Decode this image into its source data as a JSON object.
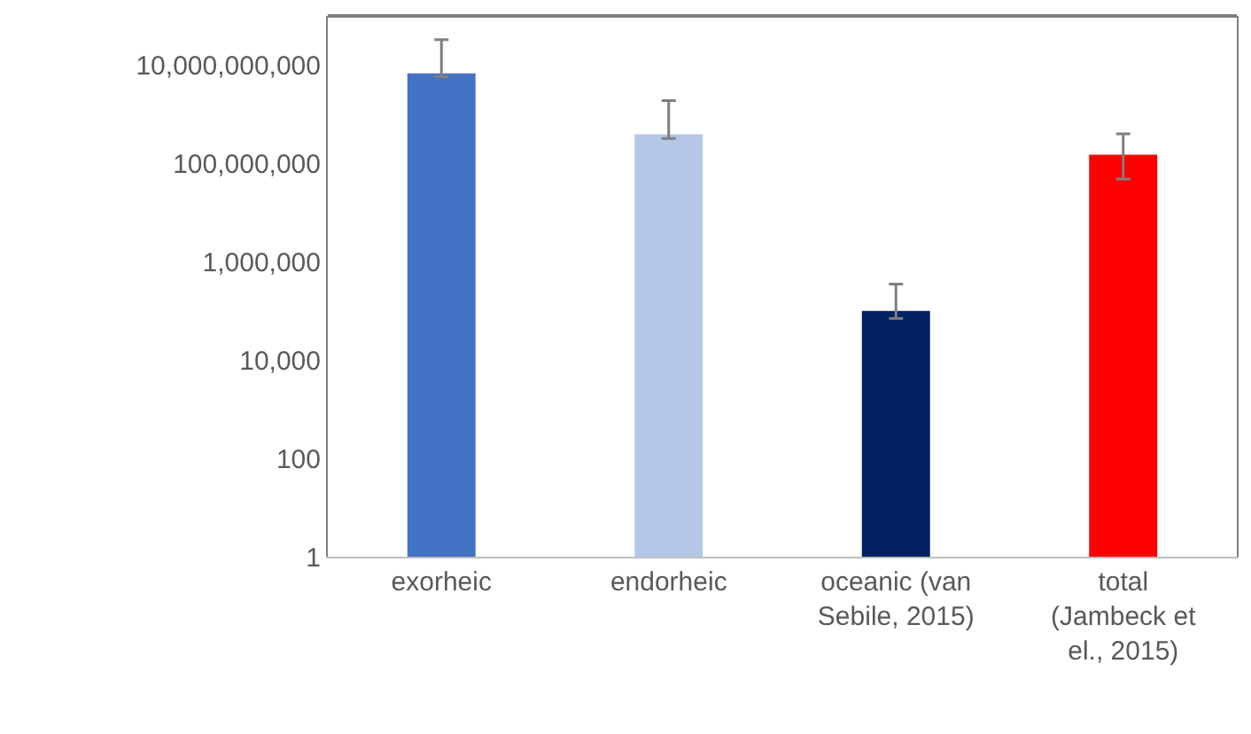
{
  "chart_data": {
    "type": "bar",
    "log": true,
    "categories": [
      "exorheic",
      "endorheic",
      "oceanic (van\nSebile, 2015)",
      "total\n(Jambeck et\nel., 2015)"
    ],
    "values": [
      6800000000,
      390000000,
      100000,
      150000000
    ],
    "colors": [
      "#4472c4",
      "#b4c7e7",
      "#002060",
      "#ff0000"
    ],
    "errors": [
      [
        5800000000,
        33000000000
      ],
      [
        320000000,
        1900000000
      ],
      [
        70000,
        350000
      ],
      [
        48000000,
        400000000
      ]
    ],
    "ylim": [
      1,
      100000000000
    ],
    "yticks": [
      {
        "value": 1,
        "label": "1"
      },
      {
        "value": 100,
        "label": "100"
      },
      {
        "value": 10000,
        "label": "10,000"
      },
      {
        "value": 1000000,
        "label": "1,000,000"
      },
      {
        "value": 100000000,
        "label": "100,000,000"
      },
      {
        "value": 10000000000,
        "label": "10,000,000,000"
      }
    ]
  }
}
